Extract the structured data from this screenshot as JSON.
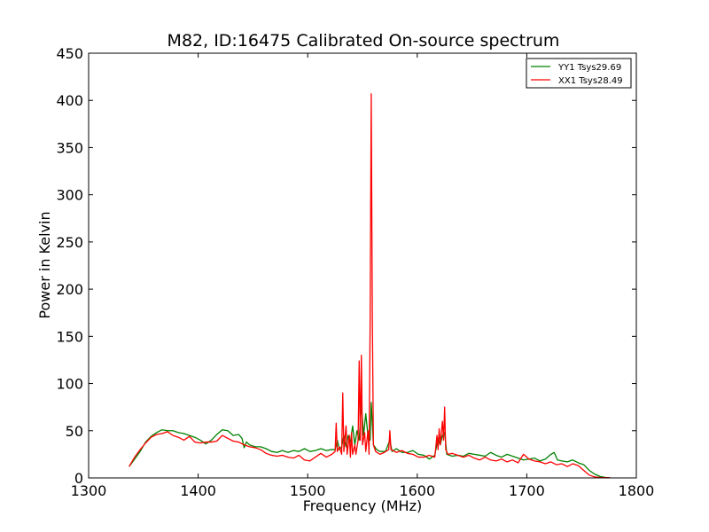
{
  "chart_data": {
    "type": "line",
    "title": "M82, ID:16475 Calibrated On-source spectrum",
    "xlabel": "Frequency (MHz)",
    "ylabel": "Power in Kelvin",
    "xlim": [
      1300,
      1800
    ],
    "ylim": [
      0,
      450
    ],
    "xticks": [
      "1300",
      "1400",
      "1500",
      "1600",
      "1700",
      "1800"
    ],
    "yticks": [
      "0",
      "50",
      "100",
      "150",
      "200",
      "250",
      "300",
      "350",
      "400",
      "450"
    ],
    "grid": false,
    "legend_position": "top-right",
    "series": [
      {
        "name": "YY1 Tsys29.69",
        "color": "#008000",
        "points": [
          [
            1337,
            12
          ],
          [
            1342,
            20
          ],
          [
            1347,
            28
          ],
          [
            1352,
            38
          ],
          [
            1357,
            44
          ],
          [
            1362,
            48
          ],
          [
            1367,
            51
          ],
          [
            1372,
            50
          ],
          [
            1377,
            50
          ],
          [
            1382,
            48
          ],
          [
            1387,
            47
          ],
          [
            1392,
            45
          ],
          [
            1397,
            43
          ],
          [
            1402,
            40
          ],
          [
            1407,
            36
          ],
          [
            1412,
            40
          ],
          [
            1417,
            46
          ],
          [
            1422,
            51
          ],
          [
            1427,
            50
          ],
          [
            1432,
            45
          ],
          [
            1437,
            46
          ],
          [
            1440,
            42
          ],
          [
            1442,
            32
          ],
          [
            1444,
            38
          ],
          [
            1447,
            35
          ],
          [
            1452,
            33
          ],
          [
            1457,
            33
          ],
          [
            1462,
            31
          ],
          [
            1467,
            28
          ],
          [
            1472,
            27
          ],
          [
            1477,
            29
          ],
          [
            1482,
            27
          ],
          [
            1487,
            29
          ],
          [
            1492,
            28
          ],
          [
            1497,
            31
          ],
          [
            1502,
            28
          ],
          [
            1507,
            29
          ],
          [
            1512,
            31
          ],
          [
            1517,
            29
          ],
          [
            1522,
            30
          ],
          [
            1525,
            30
          ],
          [
            1527,
            40
          ],
          [
            1529,
            30
          ],
          [
            1531,
            33
          ],
          [
            1533,
            45
          ],
          [
            1535,
            33
          ],
          [
            1537,
            45
          ],
          [
            1539,
            38
          ],
          [
            1541,
            55
          ],
          [
            1543,
            35
          ],
          [
            1545,
            50
          ],
          [
            1547,
            40
          ],
          [
            1549,
            78
          ],
          [
            1551,
            45
          ],
          [
            1553,
            68
          ],
          [
            1555,
            45
          ],
          [
            1557,
            40
          ],
          [
            1558,
            80
          ],
          [
            1560,
            35
          ],
          [
            1563,
            30
          ],
          [
            1566,
            28
          ],
          [
            1571,
            28
          ],
          [
            1575,
            40
          ],
          [
            1577,
            28
          ],
          [
            1581,
            31
          ],
          [
            1586,
            27
          ],
          [
            1591,
            27
          ],
          [
            1596,
            29
          ],
          [
            1601,
            25
          ],
          [
            1606,
            24
          ],
          [
            1611,
            20
          ],
          [
            1616,
            24
          ],
          [
            1619,
            42
          ],
          [
            1621,
            35
          ],
          [
            1623,
            45
          ],
          [
            1625,
            48
          ],
          [
            1627,
            25
          ],
          [
            1632,
            23
          ],
          [
            1637,
            24
          ],
          [
            1642,
            23
          ],
          [
            1647,
            26
          ],
          [
            1652,
            25
          ],
          [
            1657,
            24
          ],
          [
            1662,
            23
          ],
          [
            1667,
            27
          ],
          [
            1672,
            24
          ],
          [
            1677,
            22
          ],
          [
            1682,
            25
          ],
          [
            1687,
            23
          ],
          [
            1692,
            21
          ],
          [
            1697,
            19
          ],
          [
            1702,
            20
          ],
          [
            1707,
            21
          ],
          [
            1712,
            18
          ],
          [
            1717,
            20
          ],
          [
            1722,
            25
          ],
          [
            1725,
            27
          ],
          [
            1728,
            19
          ],
          [
            1732,
            18
          ],
          [
            1737,
            17
          ],
          [
            1742,
            19
          ],
          [
            1747,
            16
          ],
          [
            1752,
            14
          ],
          [
            1757,
            8
          ],
          [
            1762,
            4
          ],
          [
            1767,
            1.5
          ],
          [
            1772,
            0.5
          ],
          [
            1775,
            0.2
          ]
        ]
      },
      {
        "name": "XX1 Tsys28.49",
        "color": "#ff0000",
        "points": [
          [
            1337,
            12
          ],
          [
            1342,
            22
          ],
          [
            1347,
            30
          ],
          [
            1352,
            37
          ],
          [
            1357,
            43
          ],
          [
            1362,
            46
          ],
          [
            1367,
            47
          ],
          [
            1372,
            49
          ],
          [
            1377,
            45
          ],
          [
            1382,
            43
          ],
          [
            1387,
            40
          ],
          [
            1392,
            44
          ],
          [
            1397,
            38
          ],
          [
            1402,
            37
          ],
          [
            1407,
            38
          ],
          [
            1412,
            38
          ],
          [
            1417,
            39
          ],
          [
            1422,
            45
          ],
          [
            1427,
            42
          ],
          [
            1432,
            39
          ],
          [
            1437,
            38
          ],
          [
            1442,
            35
          ],
          [
            1447,
            33
          ],
          [
            1452,
            32
          ],
          [
            1457,
            30
          ],
          [
            1462,
            26
          ],
          [
            1467,
            24
          ],
          [
            1472,
            23
          ],
          [
            1477,
            24
          ],
          [
            1482,
            22
          ],
          [
            1487,
            21
          ],
          [
            1492,
            24
          ],
          [
            1497,
            19
          ],
          [
            1502,
            18
          ],
          [
            1507,
            22
          ],
          [
            1512,
            26
          ],
          [
            1517,
            22
          ],
          [
            1522,
            25
          ],
          [
            1525,
            28
          ],
          [
            1526,
            58
          ],
          [
            1527,
            28
          ],
          [
            1529,
            33
          ],
          [
            1531,
            25
          ],
          [
            1532,
            90
          ],
          [
            1533,
            28
          ],
          [
            1535,
            55
          ],
          [
            1536,
            25
          ],
          [
            1538,
            45
          ],
          [
            1539,
            22
          ],
          [
            1540,
            48
          ],
          [
            1541,
            25
          ],
          [
            1543,
            35
          ],
          [
            1544,
            25
          ],
          [
            1546,
            40
          ],
          [
            1547,
            124
          ],
          [
            1548,
            40
          ],
          [
            1549,
            130
          ],
          [
            1550,
            35
          ],
          [
            1552,
            48
          ],
          [
            1553,
            28
          ],
          [
            1555,
            50
          ],
          [
            1556,
            25
          ],
          [
            1557,
            165
          ],
          [
            1558,
            407
          ],
          [
            1559,
            170
          ],
          [
            1560,
            35
          ],
          [
            1562,
            28
          ],
          [
            1566,
            25
          ],
          [
            1570,
            27
          ],
          [
            1574,
            30
          ],
          [
            1575,
            50
          ],
          [
            1576,
            30
          ],
          [
            1581,
            27
          ],
          [
            1586,
            29
          ],
          [
            1591,
            26
          ],
          [
            1596,
            25
          ],
          [
            1601,
            22
          ],
          [
            1606,
            22
          ],
          [
            1611,
            24
          ],
          [
            1616,
            22
          ],
          [
            1618,
            45
          ],
          [
            1619,
            30
          ],
          [
            1620,
            52
          ],
          [
            1621,
            35
          ],
          [
            1622,
            48
          ],
          [
            1623,
            60
          ],
          [
            1624,
            40
          ],
          [
            1625,
            75
          ],
          [
            1626,
            30
          ],
          [
            1628,
            25
          ],
          [
            1632,
            26
          ],
          [
            1637,
            24
          ],
          [
            1642,
            22
          ],
          [
            1647,
            24
          ],
          [
            1652,
            21
          ],
          [
            1657,
            19
          ],
          [
            1662,
            22
          ],
          [
            1667,
            19
          ],
          [
            1672,
            18
          ],
          [
            1677,
            20
          ],
          [
            1682,
            17
          ],
          [
            1687,
            19
          ],
          [
            1692,
            16
          ],
          [
            1697,
            25
          ],
          [
            1702,
            20
          ],
          [
            1707,
            18
          ],
          [
            1712,
            17
          ],
          [
            1717,
            15
          ],
          [
            1722,
            17
          ],
          [
            1727,
            14
          ],
          [
            1732,
            15
          ],
          [
            1737,
            12
          ],
          [
            1742,
            15
          ],
          [
            1747,
            13
          ],
          [
            1752,
            8
          ],
          [
            1757,
            3
          ],
          [
            1762,
            1
          ],
          [
            1767,
            0.5
          ],
          [
            1772,
            0.3
          ],
          [
            1776,
            0.2
          ]
        ]
      }
    ]
  }
}
